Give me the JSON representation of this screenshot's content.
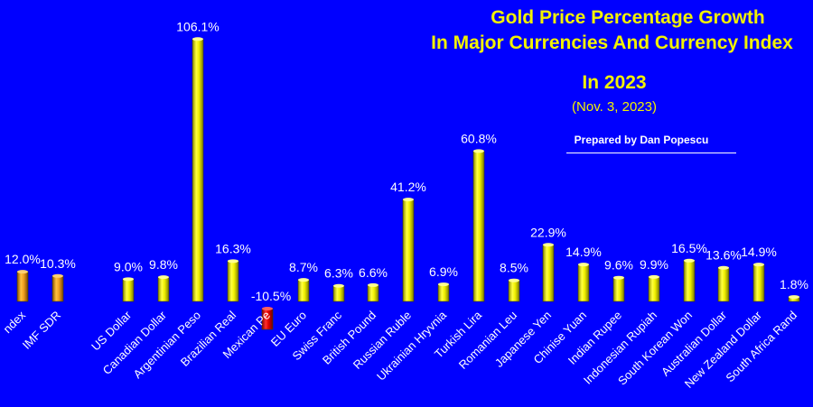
{
  "chart_data": {
    "type": "bar",
    "title": "Gold Price Percentage Growth",
    "title_line2": "In Major Currencies And Currency Index",
    "subtitle": "In 2023",
    "date": "(Nov. 3, 2023)",
    "credit": "Prepared by Dan Popescu",
    "xlabel": "",
    "ylabel": "",
    "ylim": [
      -10.5,
      106.1
    ],
    "grid": false,
    "legend": "none",
    "categories": [
      "Index",
      "IMF SDR",
      "US Dollar",
      "Canadian Dollar",
      "Argentinian Peso",
      "Brazilian Real",
      "Mexican Peso",
      "EU Euro",
      "Swiss Franc",
      "British Pound",
      "Russian Ruble",
      "Ukrainian Hryvnia",
      "Turkish Lira",
      "Romanian Leu",
      "Japanese Yen",
      "Chinise Yuan",
      "Indian Rupee",
      "Indonesian Rupiah",
      "South Korean Won",
      "Australian Dollar",
      "New Zealand Dollar",
      "South Africa Rand"
    ],
    "tick_labels_shown": [
      "ndex",
      "IMF SDR",
      "US Dollar",
      "Canadian Dollar",
      "Argentinian Peso",
      "Brazilian Real",
      "Mexican Pe",
      "EU Euro",
      "Swiss Franc",
      "British Pound",
      "Russian Ruble",
      "Ukrainian Hryvnia",
      "Turkish Lira",
      "Romanian Leu",
      "Japanese Yen",
      "Chinise Yuan",
      "Indian Rupee",
      "Indonesian Rupiah",
      "South Korean Won",
      "Australian Dollar",
      "New Zealand Dollar",
      "South Africa Rand"
    ],
    "values": [
      12.0,
      10.3,
      9.0,
      9.8,
      106.1,
      16.3,
      -10.5,
      8.7,
      6.3,
      6.6,
      41.2,
      6.9,
      60.8,
      8.5,
      22.9,
      14.9,
      9.6,
      9.9,
      16.5,
      13.6,
      14.9,
      1.8
    ],
    "value_labels": [
      "12.0%",
      "10.3%",
      "9.0%",
      "9.8%",
      "106.1%",
      "16.3%",
      "-10.5%",
      "8.7%",
      "6.3%",
      "6.6%",
      "41.2%",
      "6.9%",
      "60.8%",
      "8.5%",
      "22.9%",
      "14.9%",
      "9.6%",
      "9.9%",
      "16.5%",
      "13.6%",
      "14.9%",
      "1.8%"
    ],
    "colors": {
      "background": "#0000ff",
      "index_bars": "#f0a020",
      "currency_bars": "#f0f000",
      "negative_bars": "#e00000",
      "labels": "#ffffff",
      "title": "#f2f200"
    }
  }
}
